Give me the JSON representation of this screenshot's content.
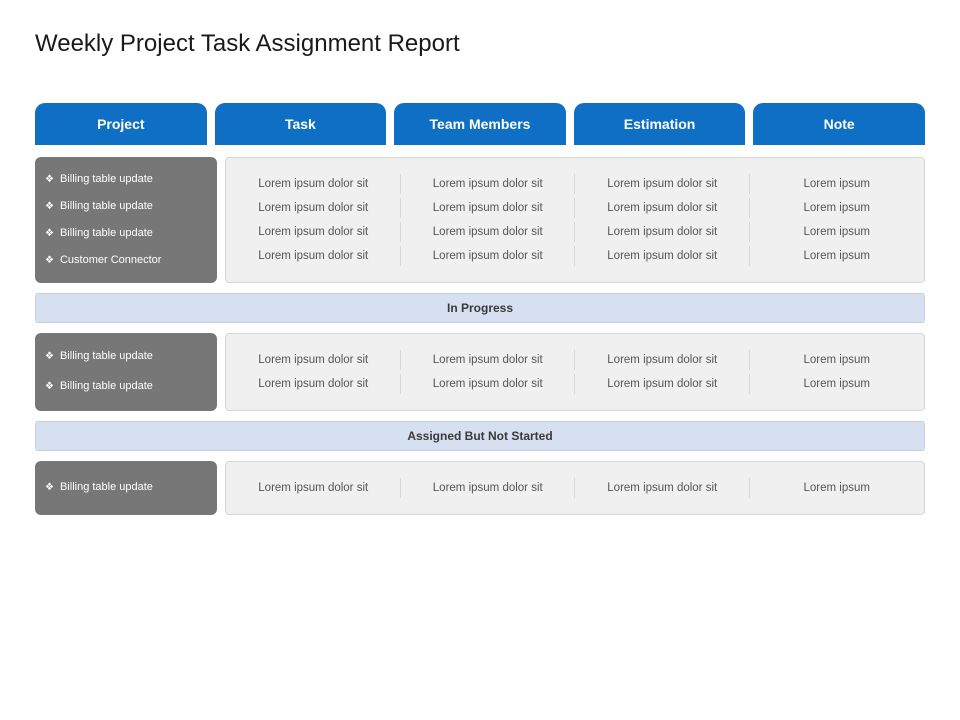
{
  "title": "Weekly Project Task Assignment Report",
  "headers": [
    "Project",
    "Task",
    "Team Members",
    "Estimation",
    "Note"
  ],
  "colors": {
    "header_bg": "#0f6fc5",
    "header_text": "#ffffff",
    "project_bg": "#777777",
    "project_text": "#ffffff",
    "data_bg": "#f0f0f0",
    "data_border": "#d5d5d5",
    "status_bg": "#d6e0f0",
    "status_border": "#c4cee0",
    "background": "#ffffff",
    "divider": "#d8d8d8"
  },
  "typography": {
    "title_fontsize": 24,
    "header_fontsize": 14,
    "body_fontsize": 11.5,
    "project_fontsize": 11,
    "status_fontsize": 12
  },
  "layout": {
    "header_radius": "10px 10px 0 0",
    "box_radius": 6,
    "gap": 8,
    "project_col_width": 182
  },
  "sections": [
    {
      "projects": [
        "Billing  table update",
        "Billing  table update",
        "Billing  table update",
        "Customer  Connector"
      ],
      "rows": [
        [
          "Lorem ipsum dolor sit",
          "Lorem ipsum dolor sit",
          "Lorem ipsum dolor sit",
          "Lorem ipsum"
        ],
        [
          "Lorem ipsum dolor sit",
          "Lorem ipsum dolor sit",
          "Lorem ipsum dolor sit",
          "Lorem ipsum"
        ],
        [
          "Lorem ipsum dolor sit",
          "Lorem ipsum dolor sit",
          "Lorem ipsum dolor sit",
          "Lorem ipsum"
        ],
        [
          "Lorem ipsum dolor sit",
          "Lorem ipsum dolor sit",
          "Lorem ipsum dolor sit",
          "Lorem ipsum"
        ]
      ]
    },
    {
      "status": "In Progress",
      "projects": [
        "Billing  table update",
        "Billing  table update"
      ],
      "rows": [
        [
          "Lorem ipsum dolor sit",
          "Lorem ipsum dolor sit",
          "Lorem ipsum dolor sit",
          "Lorem ipsum"
        ],
        [
          "Lorem ipsum dolor sit",
          "Lorem ipsum dolor sit",
          "Lorem ipsum dolor sit",
          "Lorem ipsum"
        ]
      ]
    },
    {
      "status": "Assigned But Not Started",
      "projects": [
        "Billing  table update"
      ],
      "rows": [
        [
          "Lorem ipsum dolor sit",
          "Lorem ipsum dolor sit",
          "Lorem ipsum dolor sit",
          "Lorem ipsum"
        ]
      ]
    }
  ]
}
